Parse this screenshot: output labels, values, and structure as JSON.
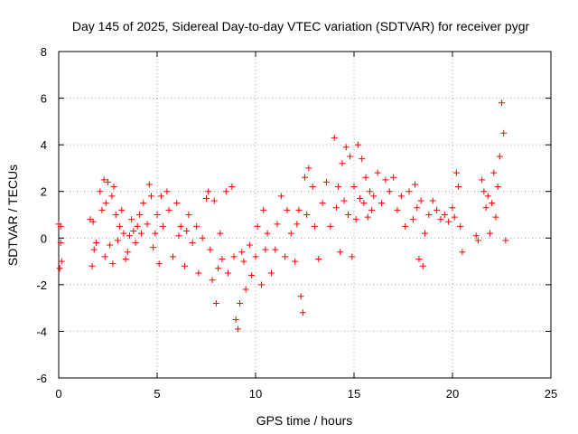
{
  "chart_data": {
    "type": "scatter",
    "title": "Day 145 of 2025, Sidereal Day-to-day VTEC variation (SDTVAR) for receiver pygr",
    "xlabel": "GPS time / hours",
    "ylabel": "SDTVAR / TECUs",
    "xlim": [
      0,
      25
    ],
    "ylim": [
      -6,
      8
    ],
    "xticks": [
      "0",
      "5",
      "10",
      "15",
      "20",
      "25"
    ],
    "yticks": [
      "-6",
      "-4",
      "-2",
      "0",
      "2",
      "4",
      "6",
      "8"
    ],
    "grid": true,
    "marker": "+",
    "color": "#ff0000",
    "series": [
      {
        "name": "SDTVAR",
        "x": [
          0.0,
          0.05,
          0.1,
          0.1,
          0.15,
          1.6,
          1.7,
          1.75,
          1.8,
          1.9,
          2.1,
          2.2,
          2.3,
          2.35,
          2.4,
          2.5,
          2.6,
          2.7,
          2.75,
          2.8,
          2.9,
          3.0,
          3.1,
          3.2,
          3.3,
          3.4,
          3.5,
          3.6,
          3.7,
          3.8,
          3.9,
          4.0,
          4.1,
          4.2,
          4.3,
          4.5,
          4.6,
          4.7,
          4.8,
          4.9,
          5.0,
          5.1,
          5.2,
          5.3,
          5.5,
          5.6,
          5.8,
          6.0,
          6.1,
          6.2,
          6.4,
          6.5,
          6.6,
          6.8,
          7.0,
          7.1,
          7.3,
          7.5,
          7.6,
          7.7,
          7.8,
          7.9,
          8.0,
          8.1,
          8.2,
          8.3,
          8.5,
          8.6,
          8.8,
          8.9,
          9.0,
          9.1,
          9.2,
          9.3,
          9.4,
          9.5,
          9.7,
          9.8,
          10.0,
          10.1,
          10.3,
          10.4,
          10.5,
          10.6,
          10.8,
          11.0,
          11.1,
          11.3,
          11.5,
          11.6,
          11.8,
          12.0,
          12.1,
          12.2,
          12.3,
          12.4,
          12.5,
          12.6,
          12.7,
          12.9,
          13.0,
          13.2,
          13.4,
          13.6,
          13.8,
          14.0,
          14.1,
          14.2,
          14.3,
          14.4,
          14.5,
          14.6,
          14.7,
          14.8,
          14.9,
          15.0,
          15.1,
          15.2,
          15.3,
          15.4,
          15.5,
          15.6,
          15.7,
          15.8,
          15.9,
          16.0,
          16.2,
          16.4,
          16.6,
          16.8,
          17.0,
          17.2,
          17.4,
          17.6,
          17.8,
          18.0,
          18.1,
          18.2,
          18.3,
          18.4,
          18.5,
          18.6,
          18.8,
          19.0,
          19.2,
          19.4,
          19.6,
          19.8,
          20.0,
          20.1,
          20.2,
          20.3,
          20.4,
          20.5,
          21.2,
          21.3,
          21.5,
          21.6,
          21.7,
          21.8,
          21.9,
          22.0,
          22.1,
          22.2,
          22.3,
          22.4,
          22.5,
          22.6,
          22.7
        ],
        "y": [
          0.6,
          -1.3,
          -0.2,
          0.5,
          -1.0,
          0.8,
          -1.2,
          0.7,
          -0.5,
          -0.2,
          2.0,
          1.2,
          2.5,
          -0.8,
          1.5,
          2.4,
          -0.3,
          1.8,
          -1.1,
          2.2,
          1.0,
          -0.1,
          0.5,
          1.2,
          0.2,
          -0.9,
          -0.6,
          0.1,
          0.8,
          0.3,
          -0.2,
          0.5,
          1.0,
          0.2,
          1.5,
          0.6,
          2.3,
          1.8,
          -0.4,
          0.2,
          1.0,
          -1.1,
          1.8,
          0.5,
          2.0,
          1.2,
          -0.8,
          1.5,
          0.1,
          0.5,
          -1.2,
          0.3,
          1.0,
          -0.2,
          0.5,
          -1.5,
          0.0,
          1.7,
          2.0,
          -0.5,
          -1.8,
          1.6,
          -2.8,
          -1.3,
          0.2,
          -0.9,
          2.0,
          -1.5,
          2.2,
          -0.8,
          -3.5,
          -3.9,
          -2.8,
          -0.6,
          -1.0,
          -2.2,
          -0.3,
          -1.6,
          -0.8,
          0.5,
          -2.0,
          1.2,
          -0.5,
          0.2,
          -1.5,
          -0.5,
          0.6,
          1.8,
          -0.8,
          1.2,
          0.2,
          -1.0,
          0.6,
          1.2,
          -2.5,
          -3.2,
          2.6,
          1.0,
          3.0,
          2.2,
          0.5,
          -0.9,
          1.5,
          2.4,
          0.5,
          4.3,
          1.3,
          2.2,
          -0.6,
          3.2,
          1.6,
          3.9,
          1.0,
          3.5,
          -0.8,
          2.2,
          0.8,
          4.0,
          1.7,
          3.4,
          1.5,
          2.6,
          0.9,
          2.0,
          1.2,
          1.8,
          2.8,
          1.5,
          2.5,
          2.0,
          2.6,
          1.2,
          1.8,
          0.5,
          2.0,
          0.8,
          2.3,
          1.3,
          -0.9,
          1.6,
          -1.2,
          0.2,
          1.0,
          1.6,
          1.2,
          0.8,
          1.0,
          0.7,
          1.3,
          0.9,
          2.8,
          2.2,
          0.5,
          -0.6,
          0.1,
          -0.1,
          2.5,
          2.0,
          1.3,
          1.8,
          0.2,
          1.5,
          2.8,
          0.9,
          2.2,
          3.5,
          5.8,
          4.5,
          -0.1
        ]
      }
    ]
  }
}
